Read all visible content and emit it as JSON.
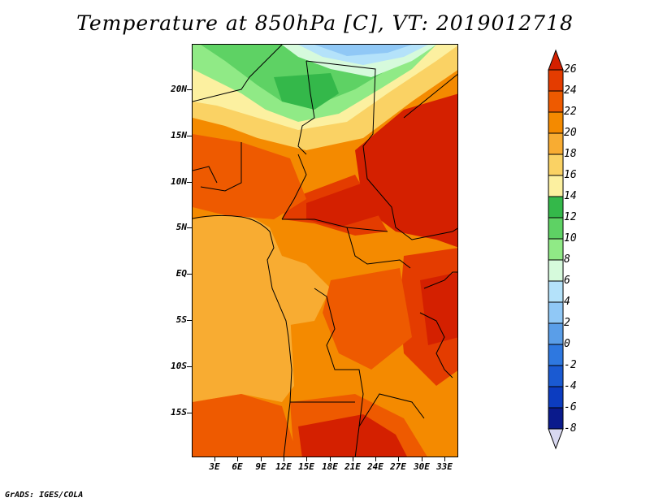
{
  "title": "Temperature at 850hPa [C], VT: 2019012718",
  "credit": "GrADS: IGES/COLA",
  "lat_labels": [
    "20N",
    "15N",
    "10N",
    "5N",
    "EQ",
    "5S",
    "10S",
    "15S"
  ],
  "lon_labels": [
    "3E",
    "6E",
    "9E",
    "12E",
    "15E",
    "18E",
    "21E",
    "24E",
    "27E",
    "30E",
    "33E"
  ],
  "colorbar": {
    "labels": [
      "26",
      "24",
      "22",
      "20",
      "18",
      "16",
      "14",
      "12",
      "10",
      "8",
      "6",
      "4",
      "2",
      "0",
      "-2",
      "-4",
      "-6",
      "-8"
    ],
    "colors": [
      "#d42000",
      "#e43c00",
      "#ee5a00",
      "#f48a00",
      "#f8ac32",
      "#fad264",
      "#fcf0a0",
      "#34b84a",
      "#5ed264",
      "#90ea86",
      "#d6fadc",
      "#b4e2fa",
      "#90c8f6",
      "#5a9ee8",
      "#2e78e0",
      "#1a5ad2",
      "#0c3cc0",
      "#0a1a8c"
    ],
    "top_color": "#d42000",
    "bottom_color": "#d8d8f0"
  },
  "colors": {
    "green_dark": "#34b84a",
    "green_mid": "#5ed264",
    "green_light": "#90ea86",
    "mint": "#d6fadc",
    "sky": "#b4e2fa",
    "blue": "#90c8f6",
    "cream": "#fcf0a0",
    "yellow": "#fad264",
    "lorange": "#f8ac32",
    "orange": "#f48a00",
    "dorange": "#ee5a00",
    "red": "#e43c00",
    "dred": "#d42000"
  }
}
